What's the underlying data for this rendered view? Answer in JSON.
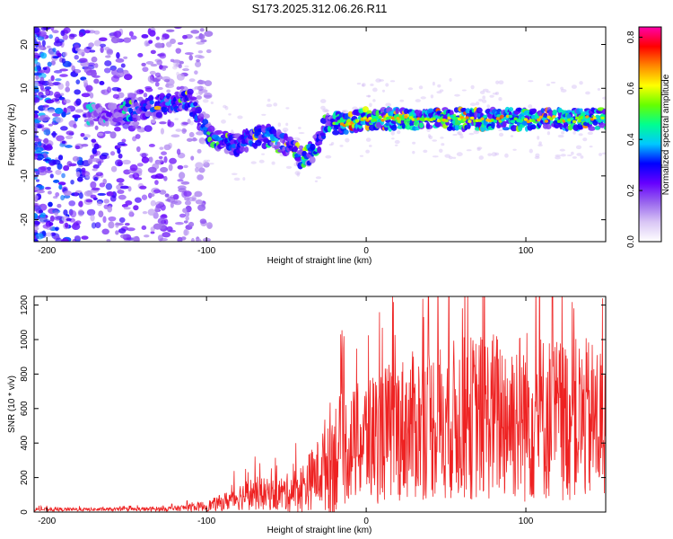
{
  "chart_data": [
    {
      "type": "heatmap",
      "title": "S173.2025.312.06.26.R11",
      "xlabel": "Height of straight line (km)",
      "ylabel": "Frequency (Hz)",
      "xlim": [
        -208,
        150
      ],
      "ylim": [
        -25,
        24
      ],
      "xticks": [
        -200,
        -100,
        0,
        100
      ],
      "xtick_labels": [
        "-200",
        "-100",
        "0",
        "100"
      ],
      "yticks": [
        -20,
        -10,
        0,
        10,
        20
      ],
      "ytick_labels": [
        "-20",
        "-10",
        "0",
        "10",
        "20"
      ],
      "ridge": {
        "x": [
          -208,
          -180,
          -160,
          -150,
          -130,
          -120,
          -110,
          -100,
          -90,
          -80,
          -70,
          -60,
          -50,
          -40,
          -33,
          -25,
          -15,
          0,
          20,
          50,
          100,
          150
        ],
        "y": [
          5,
          4,
          4,
          5,
          6,
          7,
          7,
          0,
          -2,
          -3,
          -1,
          -1,
          -3,
          -6,
          -4,
          2,
          2,
          3,
          3,
          3,
          3,
          3
        ]
      },
      "colorbar": {
        "label": "Normalized spectral amplitude",
        "range": [
          0.0,
          0.84
        ],
        "ticks": [
          0.0,
          0.2,
          0.4,
          0.6,
          0.8
        ],
        "tick_labels": [
          "0.0",
          "0.2",
          "0.4",
          "0.6",
          "0.8"
        ],
        "colors": [
          "#ffffff",
          "#d9c6f5",
          "#9966ee",
          "#6600ff",
          "#0000ff",
          "#00c8ff",
          "#00ff90",
          "#66ff00",
          "#ffff00",
          "#ff8800",
          "#ff0000",
          "#ff00aa"
        ]
      }
    },
    {
      "type": "line",
      "title": "",
      "xlabel": "Height of straight line (km)",
      "ylabel": "SNR (10 * v/v)",
      "xlim": [
        -208,
        150
      ],
      "ylim": [
        0,
        1250
      ],
      "xticks": [
        -200,
        -100,
        0,
        100
      ],
      "xtick_labels": [
        "-200",
        "-100",
        "0",
        "100"
      ],
      "yticks": [
        0,
        200,
        400,
        600,
        800,
        1000,
        1200
      ],
      "ytick_labels": [
        "0",
        "200",
        "400",
        "600",
        "800",
        "1000",
        "1200"
      ],
      "line_color": "#ee2222",
      "envelope": {
        "x": [
          -208,
          -150,
          -120,
          -100,
          -90,
          -80,
          -70,
          -60,
          -50,
          -40,
          -30,
          -22,
          -10,
          0,
          20,
          40,
          60,
          80,
          100,
          120,
          150
        ],
        "mean": [
          15,
          15,
          20,
          35,
          55,
          90,
          110,
          100,
          110,
          140,
          230,
          320,
          380,
          420,
          480,
          520,
          540,
          560,
          560,
          540,
          520
        ],
        "spread": [
          10,
          10,
          15,
          30,
          50,
          80,
          100,
          90,
          110,
          150,
          200,
          350,
          320,
          380,
          420,
          450,
          480,
          500,
          520,
          480,
          480
        ]
      }
    }
  ]
}
